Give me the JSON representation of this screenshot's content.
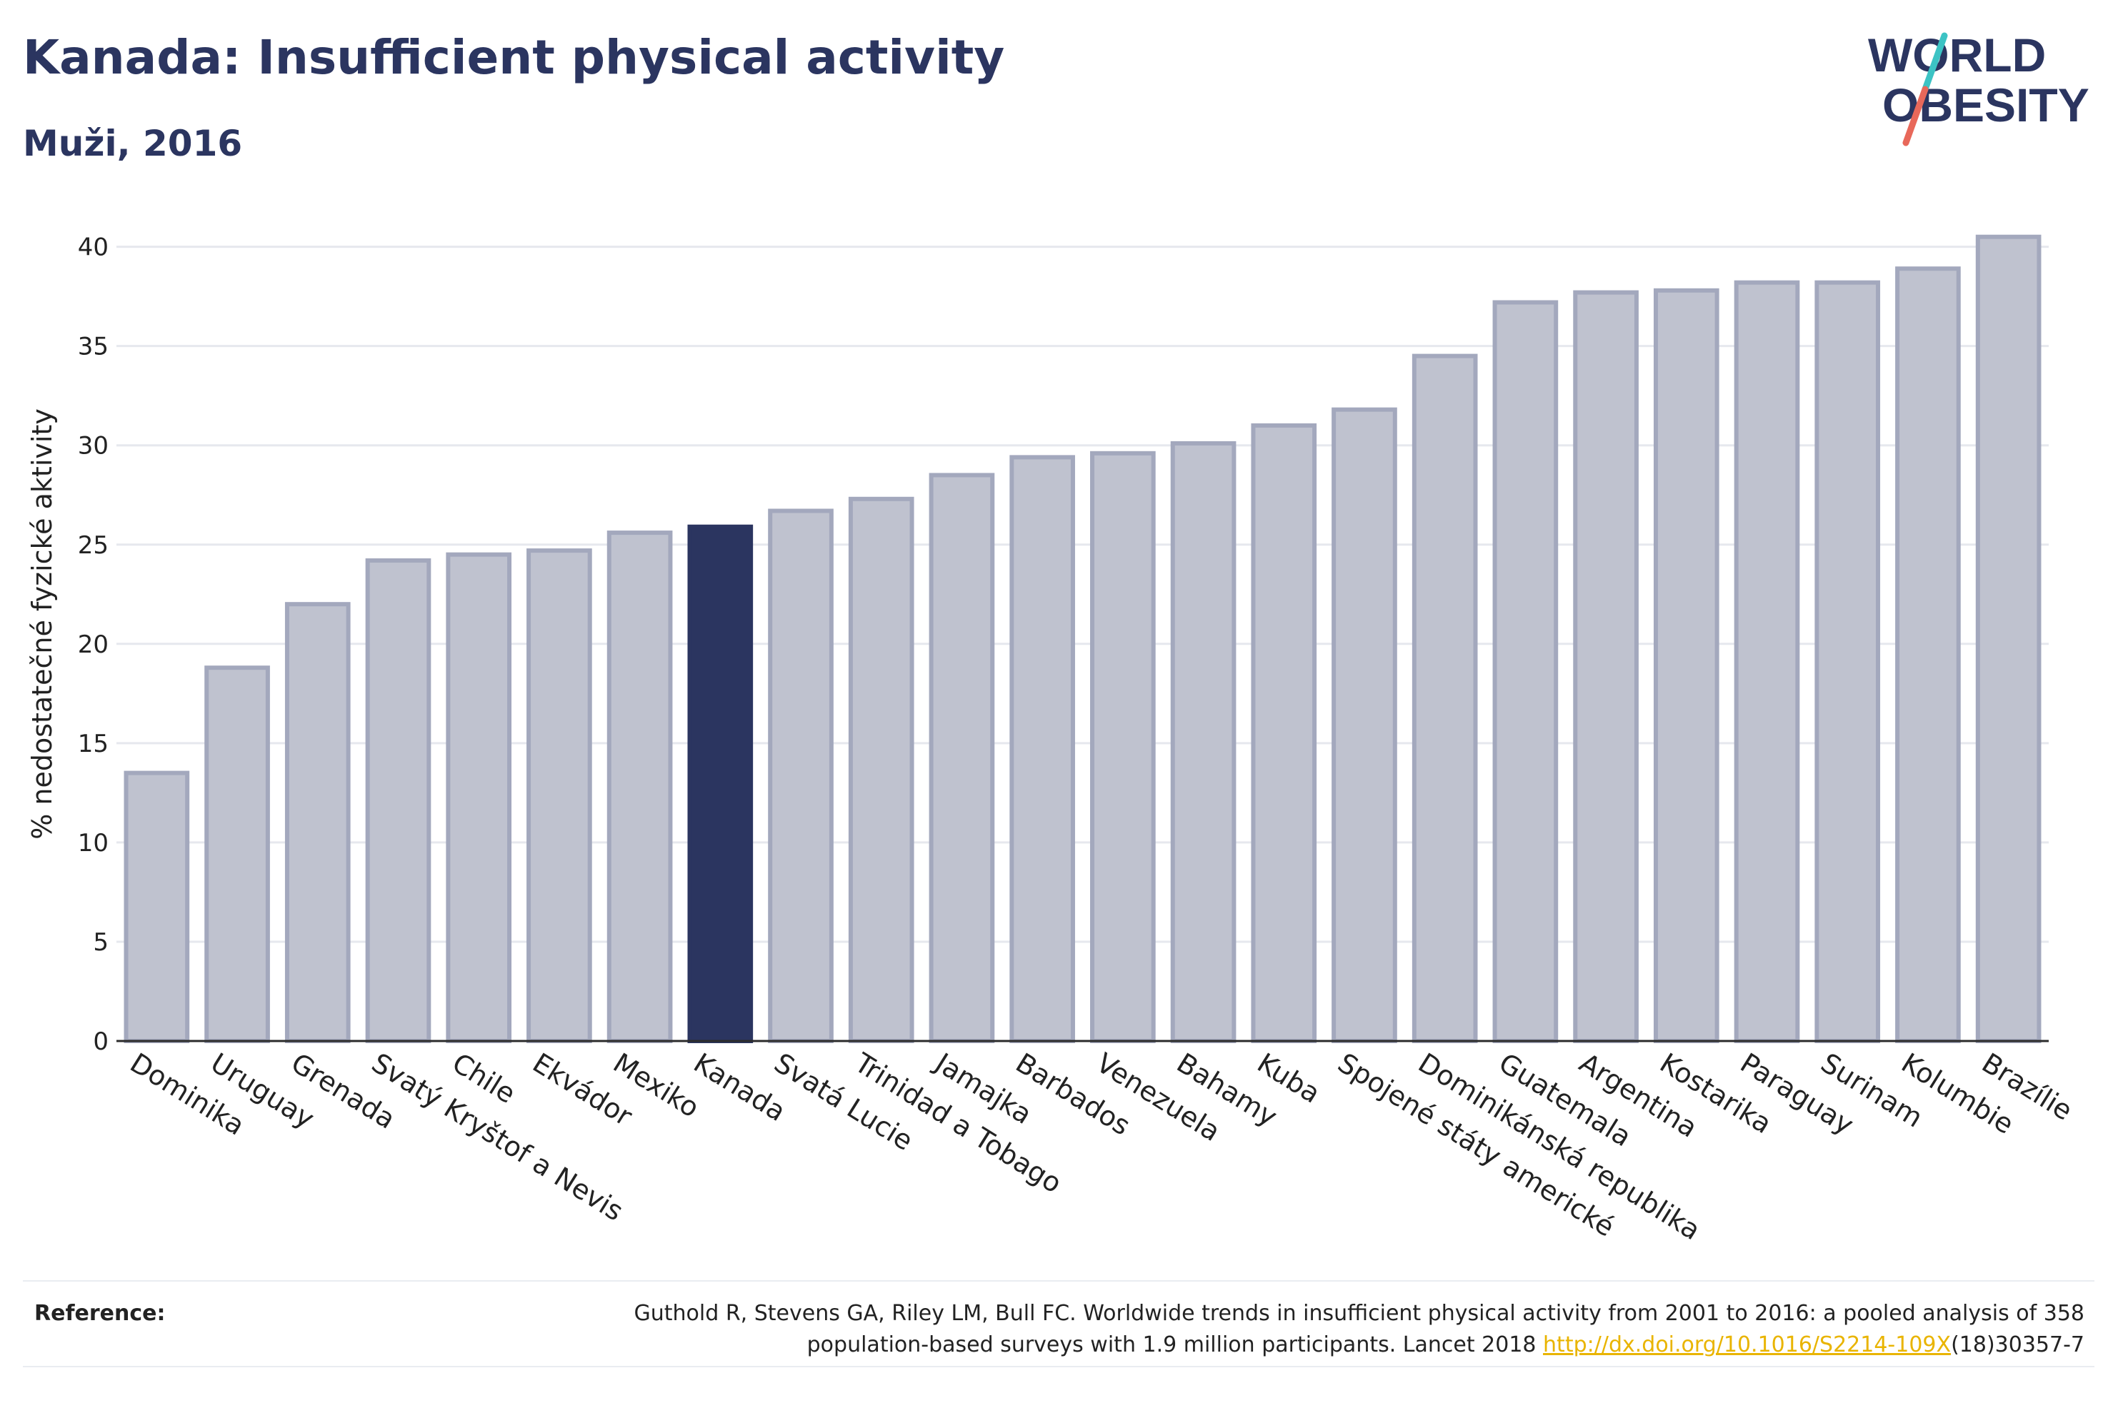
{
  "header": {
    "title": "Kanada: Insufficient physical activity",
    "subtitle": "Muži, 2016"
  },
  "logo": {
    "line1": "WORLD",
    "line2": "OBESITY",
    "accent_teal": "#3cc3c4",
    "accent_coral": "#e8685a",
    "text_color": "#2b3560"
  },
  "reference": {
    "label": "Reference:",
    "text_line1": "Guthold R, Stevens GA, Riley LM, Bull FC. Worldwide trends in insufficient physical activity from 2001 to 2016: a pooled analysis of 358",
    "text_line2_before": "population-based surveys with 1.9 million participants. Lancet 2018 ",
    "link": "http://dx.doi.org/10.1016/S2214-109X",
    "text_line2_after": "(18)30357-7"
  },
  "chart_data": {
    "type": "bar",
    "title": "Kanada: Insufficient physical activity",
    "subtitle": "Muži, 2016",
    "ylabel": "% nedostatečné fyzické aktivity",
    "xlabel": "",
    "ylim": [
      0,
      42
    ],
    "yticks": [
      0,
      5,
      10,
      15,
      20,
      25,
      30,
      35,
      40
    ],
    "grid": true,
    "highlight": "Kanada",
    "colors": {
      "bar": "#bfc2cf",
      "bar_edge": "#a3a8bd",
      "highlight": "#2b3560",
      "grid": "#e6e8ee",
      "axis": "#2b2b2b"
    },
    "categories": [
      "Dominika",
      "Uruguay",
      "Grenada",
      "Svatý Kryštof a Nevis",
      "Chile",
      "Ekvádor",
      "Mexiko",
      "Kanada",
      "Svatá Lucie",
      "Trinidad a Tobago",
      "Jamajka",
      "Barbados",
      "Venezuela",
      "Bahamy",
      "Kuba",
      "Spojené státy americké",
      "Dominikánská republika",
      "Guatemala",
      "Argentina",
      "Kostarika",
      "Paraguay",
      "Surinam",
      "Kolumbie",
      "Brazílie"
    ],
    "values": [
      13.5,
      18.8,
      22.0,
      24.2,
      24.5,
      24.7,
      25.6,
      25.9,
      26.7,
      27.3,
      28.5,
      29.4,
      29.6,
      30.1,
      31.0,
      31.8,
      34.5,
      37.2,
      37.7,
      37.8,
      38.2,
      38.2,
      38.9,
      40.5
    ]
  }
}
